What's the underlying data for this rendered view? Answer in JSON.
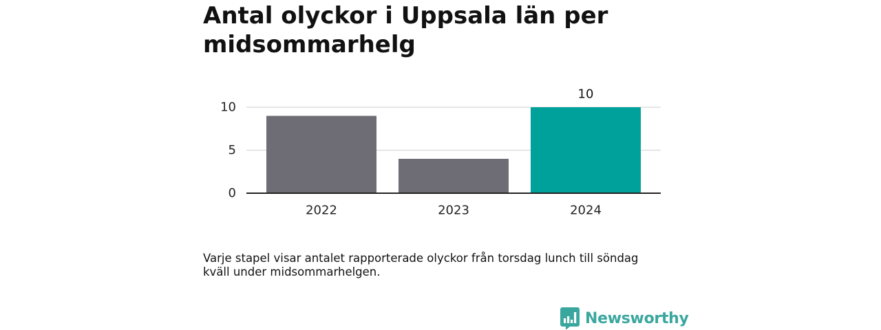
{
  "title": "Antal olyckor i Uppsala län per midsommarhelg",
  "caption": "Varje stapel visar antalet rapporterade olyckor från torsdag lunch till söndag kväll under midsommarhelgen.",
  "brand": {
    "name": "Newsworthy",
    "logo_icon": "newsworthy-bar-chart-logo-icon"
  },
  "colors": {
    "bar_default": "#6e6d75",
    "bar_highlight": "#00a19a",
    "gridline": "#dddddd",
    "axis": "#222222",
    "brand": "#3aa79f"
  },
  "chart_data": {
    "type": "bar",
    "title": "Antal olyckor i Uppsala län per midsommarhelg",
    "xlabel": "",
    "ylabel": "",
    "categories": [
      "2022",
      "2023",
      "2024"
    ],
    "values": [
      9,
      4,
      10
    ],
    "ylim": [
      0,
      10
    ],
    "y_ticks": [
      0,
      5,
      10
    ],
    "y_tick_labels": [
      "0",
      "5",
      "10"
    ],
    "highlight_index": 2,
    "data_labels": [
      {
        "category": "2024",
        "text": "10"
      }
    ],
    "grid": true,
    "legend": "none"
  }
}
